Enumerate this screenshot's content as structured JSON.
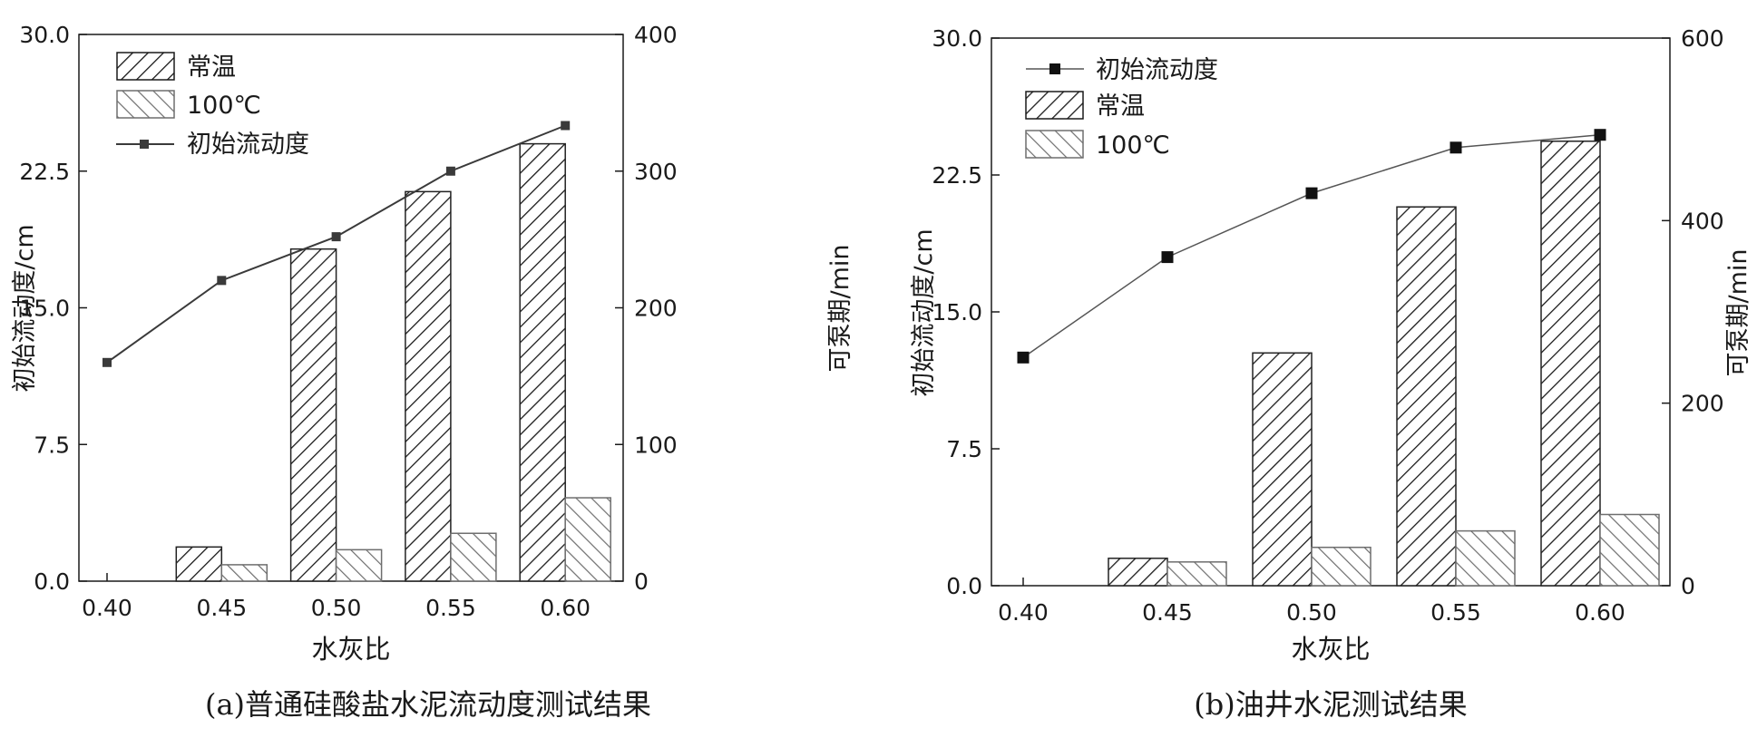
{
  "chart_data": [
    {
      "type": "bar",
      "caption": "(a)普通硅酸盐水泥流动度测试结果",
      "categories": [
        "0.40",
        "0.45",
        "0.50",
        "0.55",
        "0.60"
      ],
      "xlabel": "水灰比",
      "ylabel_left": "初始流动度/cm",
      "ylabel_right": "可泵期/min",
      "ylim_left": [
        0,
        30
      ],
      "ylim_right": [
        0,
        400
      ],
      "yticks_left": [
        "0.0",
        "7.5",
        "15.0",
        "22.5",
        "30.0"
      ],
      "yticks_right": [
        "0",
        "100",
        "200",
        "300",
        "400"
      ],
      "legend_placement": "top-left",
      "legend_order": [
        "常温",
        "100℃",
        "初始流动度"
      ],
      "bar_series": [
        {
          "name": "常温",
          "axis": "right",
          "color": "#222222",
          "values": [
            0,
            25,
            243,
            285,
            320
          ]
        },
        {
          "name": "100℃",
          "axis": "right",
          "color": "#6e6e6e",
          "values": [
            0,
            12,
            23,
            35,
            61
          ]
        }
      ],
      "line_series": [
        {
          "name": "初始流动度",
          "axis": "left",
          "color": "#3a3a3a",
          "values": [
            12.0,
            16.5,
            18.9,
            22.5,
            25.0
          ]
        }
      ]
    },
    {
      "type": "bar",
      "caption": "(b)油井水泥测试结果",
      "categories": [
        "0.40",
        "0.45",
        "0.50",
        "0.55",
        "0.60"
      ],
      "xlabel": "水灰比",
      "ylabel_left": "初始流动度/cm",
      "ylabel_right": "可泵期/min",
      "ylim_left": [
        0,
        30
      ],
      "ylim_right": [
        0,
        600
      ],
      "yticks_left": [
        "0.0",
        "7.5",
        "15.0",
        "22.5",
        "30.0"
      ],
      "yticks_right": [
        "0",
        "200",
        "400",
        "600"
      ],
      "legend_placement": "top-left",
      "legend_order": [
        "初始流动度",
        "常温",
        "100℃"
      ],
      "bar_series": [
        {
          "name": "常温",
          "axis": "right",
          "color": "#222222",
          "values": [
            0,
            30,
            255,
            415,
            487
          ]
        },
        {
          "name": "100℃",
          "axis": "right",
          "color": "#6e6e6e",
          "values": [
            0,
            26,
            42,
            60,
            78
          ]
        }
      ],
      "line_series": [
        {
          "name": "初始流动度",
          "axis": "left",
          "color": "#555555",
          "values": [
            12.5,
            18.0,
            21.5,
            24.0,
            24.7
          ]
        }
      ]
    }
  ]
}
